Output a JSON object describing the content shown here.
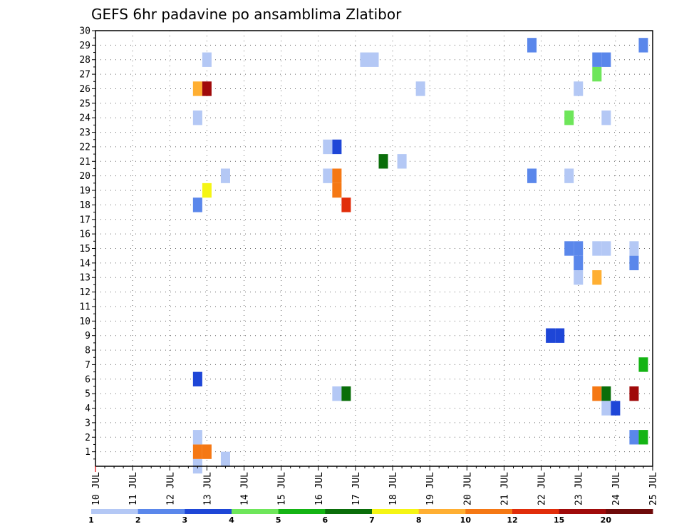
{
  "chart_data": {
    "type": "heatmap",
    "title": "GEFS 6hr padavine po ansamblima Zlatibor",
    "x_dates": [
      "10 JUL",
      "11 JUL",
      "12 JUL",
      "13 JUL",
      "14 JUL",
      "15 JUL",
      "16 JUL",
      "17 JUL",
      "18 JUL",
      "19 JUL",
      "20 JUL",
      "21 JUL",
      "22 JUL",
      "23 JUL",
      "24 JUL",
      "25 JUL"
    ],
    "xlim_days": [
      10,
      25
    ],
    "y_members": [
      "1",
      "2",
      "3",
      "4",
      "5",
      "6",
      "7",
      "8",
      "9",
      "10",
      "11",
      "12",
      "13",
      "14",
      "15",
      "16",
      "17",
      "18",
      "19",
      "20",
      "21",
      "22",
      "23",
      "24",
      "25",
      "26",
      "27",
      "28",
      "29",
      "30"
    ],
    "ylim": [
      0,
      30
    ],
    "colorbar": {
      "labels": [
        "1",
        "2",
        "3",
        "4",
        "5",
        "6",
        "7",
        "8",
        "10",
        "12",
        "15",
        "20"
      ],
      "colors": [
        "#b4c8f5",
        "#5a87eb",
        "#1e46d7",
        "#6ee65a",
        "#14b414",
        "#0a6e0a",
        "#f5f514",
        "#ffaf32",
        "#f57814",
        "#e12d0a",
        "#a00a0a",
        "#6e0a0a"
      ]
    },
    "cells": [
      {
        "day": 12.75,
        "member": 0,
        "c": "#b4c8f5"
      },
      {
        "day": 13.0,
        "member": 1,
        "c": "#f57814"
      },
      {
        "day": 12.75,
        "member": 1,
        "c": "#f57814"
      },
      {
        "day": 12.75,
        "member": 2,
        "c": "#b4c8f5"
      },
      {
        "day": 12.75,
        "member": 6,
        "c": "#1e46d7"
      },
      {
        "day": 12.75,
        "member": 18,
        "c": "#5a87eb"
      },
      {
        "day": 13.0,
        "member": 19,
        "c": "#f5f514"
      },
      {
        "day": 13.5,
        "member": 20,
        "c": "#b4c8f5"
      },
      {
        "day": 12.75,
        "member": 24,
        "c": "#b4c8f5"
      },
      {
        "day": 12.75,
        "member": 26,
        "c": "#ffaf32"
      },
      {
        "day": 13.0,
        "member": 26,
        "c": "#a00a0a"
      },
      {
        "day": 13.0,
        "member": 28,
        "c": "#b4c8f5"
      },
      {
        "day": 13.5,
        "member": 0.5,
        "c": "#b4c8f5"
      },
      {
        "day": 16.5,
        "member": 5,
        "c": "#b4c8f5"
      },
      {
        "day": 16.75,
        "member": 5,
        "c": "#0a6e0a"
      },
      {
        "day": 16.25,
        "member": 20,
        "c": "#b4c8f5"
      },
      {
        "day": 16.5,
        "member": 20,
        "c": "#f57814"
      },
      {
        "day": 16.5,
        "member": 19,
        "c": "#f57814"
      },
      {
        "day": 16.75,
        "member": 18,
        "c": "#e12d0a"
      },
      {
        "day": 16.5,
        "member": 22,
        "c": "#1e46d7"
      },
      {
        "day": 16.25,
        "member": 22,
        "c": "#b4c8f5"
      },
      {
        "day": 17.75,
        "member": 21,
        "c": "#0a6e0a"
      },
      {
        "day": 18.25,
        "member": 21,
        "c": "#b4c8f5"
      },
      {
        "day": 17.25,
        "member": 28,
        "c": "#b4c8f5"
      },
      {
        "day": 17.5,
        "member": 28,
        "c": "#b4c8f5"
      },
      {
        "day": 18.75,
        "member": 26,
        "c": "#b4c8f5"
      },
      {
        "day": 21.75,
        "member": 29,
        "c": "#5a87eb"
      },
      {
        "day": 21.75,
        "member": 20,
        "c": "#5a87eb"
      },
      {
        "day": 22.25,
        "member": 9,
        "c": "#1e46d7"
      },
      {
        "day": 22.5,
        "member": 9,
        "c": "#1e46d7"
      },
      {
        "day": 22.75,
        "member": 20,
        "c": "#b4c8f5"
      },
      {
        "day": 22.75,
        "member": 24,
        "c": "#6ee65a"
      },
      {
        "day": 23.0,
        "member": 26,
        "c": "#b4c8f5"
      },
      {
        "day": 22.75,
        "member": 15,
        "c": "#5a87eb"
      },
      {
        "day": 23.0,
        "member": 15,
        "c": "#5a87eb"
      },
      {
        "day": 23.0,
        "member": 14,
        "c": "#5a87eb"
      },
      {
        "day": 23.0,
        "member": 13,
        "c": "#b4c8f5"
      },
      {
        "day": 23.5,
        "member": 28,
        "c": "#5a87eb"
      },
      {
        "day": 23.75,
        "member": 28,
        "c": "#5a87eb"
      },
      {
        "day": 23.5,
        "member": 27,
        "c": "#6ee65a"
      },
      {
        "day": 23.75,
        "member": 24,
        "c": "#b4c8f5"
      },
      {
        "day": 23.5,
        "member": 15,
        "c": "#b4c8f5"
      },
      {
        "day": 23.75,
        "member": 15,
        "c": "#b4c8f5"
      },
      {
        "day": 23.5,
        "member": 13,
        "c": "#ffaf32"
      },
      {
        "day": 23.5,
        "member": 5,
        "c": "#f57814"
      },
      {
        "day": 23.75,
        "member": 5,
        "c": "#0a6e0a"
      },
      {
        "day": 23.75,
        "member": 4,
        "c": "#b4c8f5"
      },
      {
        "day": 24.0,
        "member": 4,
        "c": "#1e46d7"
      },
      {
        "day": 24.5,
        "member": 15,
        "c": "#b4c8f5"
      },
      {
        "day": 24.5,
        "member": 14,
        "c": "#5a87eb"
      },
      {
        "day": 24.5,
        "member": 5,
        "c": "#a00a0a"
      },
      {
        "day": 24.5,
        "member": 2,
        "c": "#5a87eb"
      },
      {
        "day": 24.75,
        "member": 2,
        "c": "#14b414"
      },
      {
        "day": 24.75,
        "member": 7,
        "c": "#14b414"
      },
      {
        "day": 24.75,
        "member": 29,
        "c": "#5a87eb"
      }
    ]
  }
}
